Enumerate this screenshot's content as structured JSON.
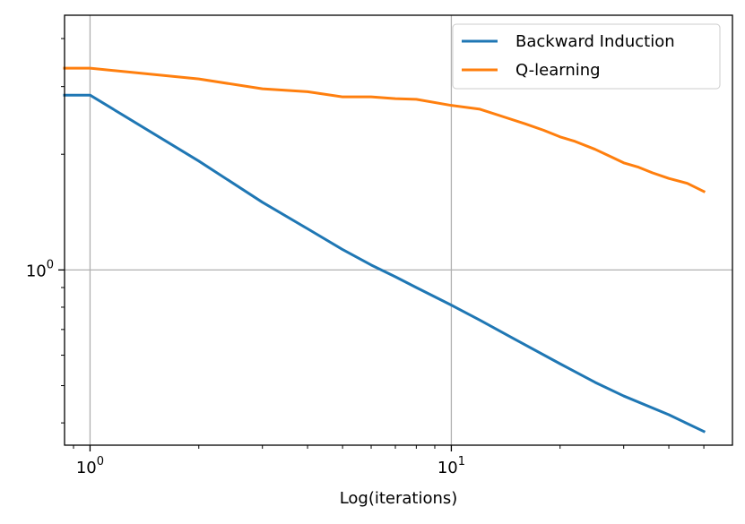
{
  "chart_data": {
    "type": "line",
    "xscale": "log",
    "yscale": "log",
    "xlim": [
      0.85,
      60
    ],
    "ylim": [
      0.35,
      4.6
    ],
    "xlabel": "Log(iterations)",
    "ylabel": "",
    "grid": true,
    "legend_position": "top-right",
    "x_major_ticks": [
      {
        "value": 1,
        "base": "10",
        "exp": "0"
      },
      {
        "value": 10,
        "base": "10",
        "exp": "1"
      }
    ],
    "y_major_ticks": [
      {
        "value": 1,
        "base": "10",
        "exp": "0"
      }
    ],
    "series": [
      {
        "name": "Backward Induction",
        "color": "#1f77b4",
        "x": [
          0.85,
          1,
          2,
          3,
          4,
          5,
          6,
          7,
          8,
          10,
          12,
          15,
          20,
          25,
          30,
          40,
          50
        ],
        "y": [
          2.85,
          2.85,
          1.92,
          1.5,
          1.28,
          1.13,
          1.03,
          0.96,
          0.9,
          0.81,
          0.74,
          0.66,
          0.57,
          0.51,
          0.47,
          0.42,
          0.38
        ]
      },
      {
        "name": "Q-learning",
        "color": "#ff7f0e",
        "x": [
          0.85,
          1,
          2,
          3,
          4,
          5,
          6,
          7,
          8,
          10,
          12,
          14,
          16,
          18,
          20,
          22,
          25,
          28,
          30,
          33,
          36,
          40,
          45,
          50
        ],
        "y": [
          3.35,
          3.35,
          3.14,
          2.96,
          2.91,
          2.82,
          2.82,
          2.79,
          2.78,
          2.68,
          2.62,
          2.5,
          2.4,
          2.31,
          2.22,
          2.16,
          2.06,
          1.96,
          1.9,
          1.85,
          1.79,
          1.73,
          1.68,
          1.6
        ]
      }
    ]
  }
}
